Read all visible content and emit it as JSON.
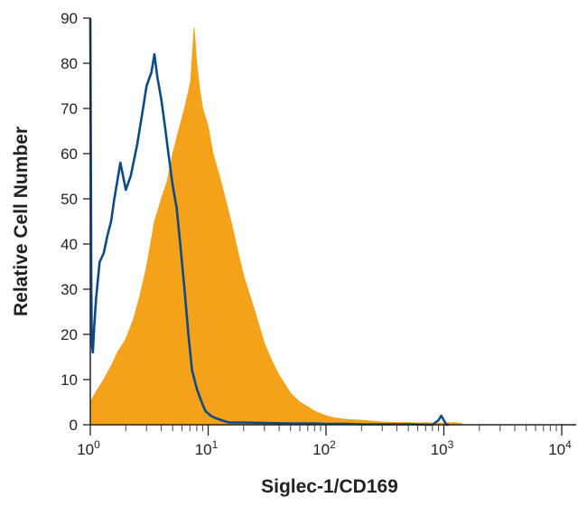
{
  "chart_data": {
    "type": "area",
    "xlabel": "Siglec-1/CD169",
    "ylabel": "Relative Cell Number",
    "x_scale": "log",
    "xlim": [
      1,
      10000
    ],
    "ylim": [
      0,
      90
    ],
    "y_ticks": [
      0,
      10,
      20,
      30,
      40,
      50,
      60,
      70,
      80,
      90
    ],
    "y_tick_labels": [
      "0",
      "10",
      "20",
      "30",
      "40",
      "50",
      "60",
      "70",
      "80",
      "90"
    ],
    "x_ticks": [
      {
        "value": 1,
        "base": "10",
        "exp": "0"
      },
      {
        "value": 10,
        "base": "10",
        "exp": "1"
      },
      {
        "value": 100,
        "base": "10",
        "exp": "2"
      },
      {
        "value": 1000,
        "base": "10",
        "exp": "3"
      },
      {
        "value": 10000,
        "base": "10",
        "exp": "4"
      }
    ],
    "grid": false,
    "series": [
      {
        "style": "filled",
        "color": "#f5a21b",
        "x": [
          1.0,
          1.1,
          1.3,
          1.5,
          1.7,
          2.0,
          2.3,
          2.6,
          3.0,
          3.5,
          4.0,
          4.5,
          5.0,
          5.6,
          6.3,
          7.1,
          7.6,
          8.0,
          8.5,
          9.0,
          10,
          11,
          12.5,
          14,
          16,
          18,
          20,
          25,
          30,
          35,
          40,
          50,
          60,
          70,
          80,
          100,
          120,
          150,
          200,
          250,
          300,
          400,
          500,
          600,
          700,
          800,
          1000,
          1200,
          1400,
          1500
        ],
        "y": [
          5,
          7,
          10,
          13,
          16,
          19,
          23,
          28,
          35,
          45,
          50,
          54,
          60,
          65,
          70,
          76,
          88,
          80,
          74,
          70,
          66,
          60,
          55,
          50,
          44,
          38,
          33,
          25,
          18,
          14,
          11,
          7,
          5,
          4,
          3,
          2,
          1.5,
          1.2,
          1,
          0.8,
          0.6,
          0.5,
          0.5,
          0.4,
          0.5,
          0.4,
          0.4,
          0.5,
          0.3,
          0
        ]
      },
      {
        "style": "outline",
        "color": "#0e4a86",
        "x": [
          1.0,
          1.01,
          1.02,
          1.03,
          1.05,
          1.08,
          1.12,
          1.2,
          1.3,
          1.4,
          1.5,
          1.6,
          1.8,
          2.0,
          2.2,
          2.5,
          2.8,
          3.0,
          3.3,
          3.5,
          3.7,
          4.0,
          4.3,
          4.6,
          5.0,
          5.4,
          5.8,
          6.3,
          6.8,
          7.3,
          8.0,
          8.8,
          9.5,
          10.5,
          11.5,
          13,
          15,
          20,
          30,
          50,
          80,
          100,
          150,
          200,
          300,
          500,
          800,
          900,
          950,
          1000,
          1050,
          1100
        ],
        "y": [
          90,
          60,
          30,
          18,
          16,
          22,
          28,
          36,
          38,
          42,
          45,
          50,
          58,
          52,
          55,
          62,
          70,
          75,
          78,
          82,
          77,
          72,
          66,
          60,
          53,
          48,
          40,
          30,
          20,
          12,
          8,
          5,
          3,
          2,
          1.5,
          1,
          0.5,
          0.5,
          0.4,
          0.3,
          0.3,
          0.2,
          0.2,
          0.1,
          0.1,
          0.1,
          0,
          1,
          2,
          1,
          0,
          0
        ]
      }
    ]
  }
}
